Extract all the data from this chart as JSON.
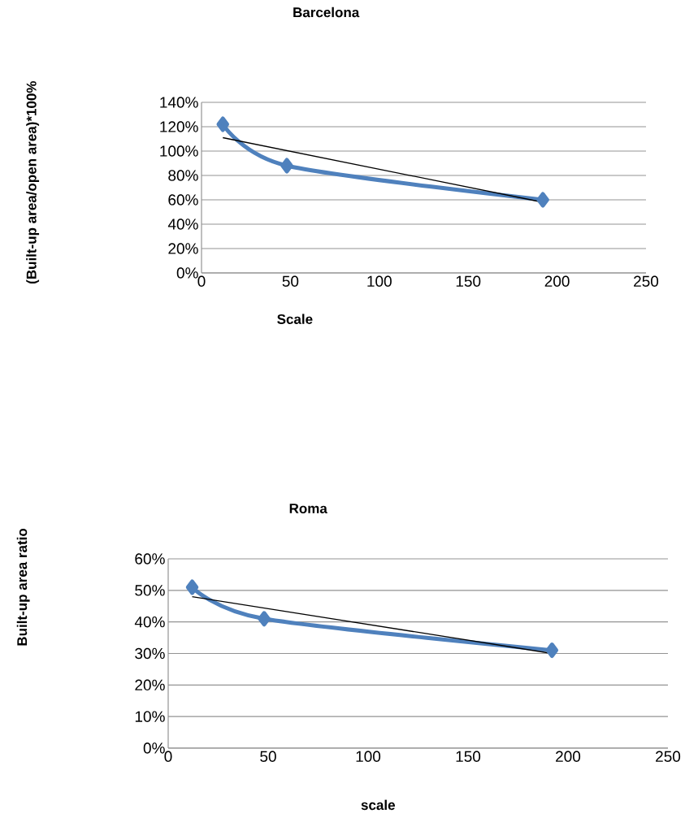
{
  "chart_data": [
    {
      "type": "line",
      "title": "Barcelona",
      "xlabel": "Scale",
      "ylabel": "(Built-up   area/open area)*100%",
      "xlim": [
        0,
        250
      ],
      "xticks": [
        0,
        50,
        100,
        150,
        200,
        250
      ],
      "ylim": [
        0,
        140
      ],
      "yticks": [
        {
          "value": 0,
          "label": "0%"
        },
        {
          "value": 20,
          "label": "20%"
        },
        {
          "value": 40,
          "label": "40%"
        },
        {
          "value": 60,
          "label": "60%"
        },
        {
          "value": 80,
          "label": "80%"
        },
        {
          "value": 100,
          "label": "100%"
        },
        {
          "value": 120,
          "label": "120%"
        },
        {
          "value": 140,
          "label": "140%"
        }
      ],
      "grid": "y",
      "marker": "diamond",
      "series": [
        {
          "color": "#4f81bd",
          "x": [
            12,
            48,
            192
          ],
          "values": [
            122,
            88,
            60
          ]
        },
        {
          "color": "#000000",
          "x": [
            12,
            192
          ],
          "values": [
            111,
            58
          ],
          "marker": "none"
        }
      ]
    },
    {
      "type": "line",
      "title": "Roma",
      "xlabel": "scale",
      "ylabel": "Built-up   area ratio",
      "xlim": [
        0,
        250
      ],
      "xticks": [
        0,
        50,
        100,
        150,
        200,
        250
      ],
      "ylim": [
        0,
        60
      ],
      "yticks": [
        {
          "value": 0,
          "label": "0%"
        },
        {
          "value": 10,
          "label": "10%"
        },
        {
          "value": 20,
          "label": "20%"
        },
        {
          "value": 30,
          "label": "30%"
        },
        {
          "value": 40,
          "label": "40%"
        },
        {
          "value": 50,
          "label": "50%"
        },
        {
          "value": 60,
          "label": "60%"
        }
      ],
      "grid": "y",
      "marker": "diamond",
      "series": [
        {
          "color": "#4f81bd",
          "x": [
            12,
            48,
            192
          ],
          "values": [
            51,
            41,
            31
          ]
        },
        {
          "color": "#000000",
          "x": [
            12,
            192
          ],
          "values": [
            48,
            30
          ],
          "marker": "none"
        }
      ]
    }
  ]
}
